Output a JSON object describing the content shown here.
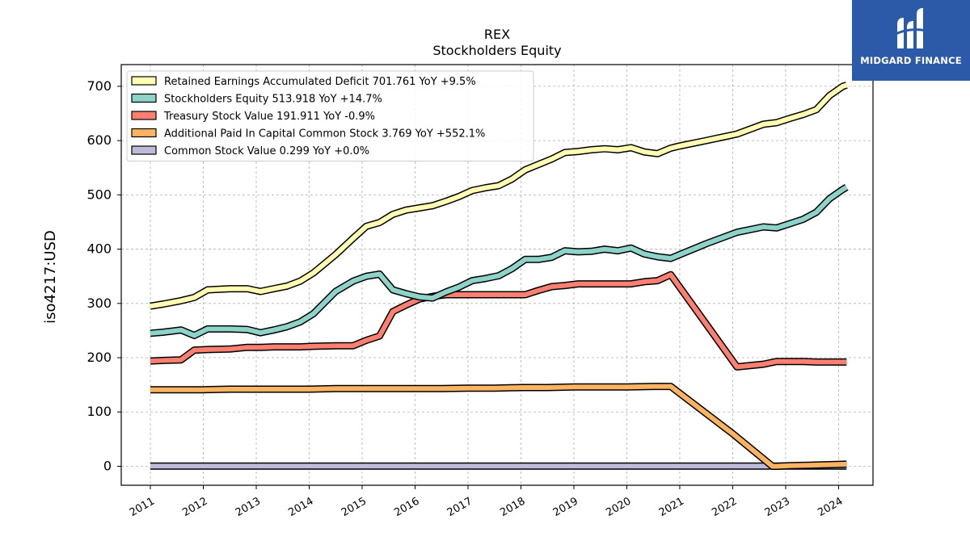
{
  "chart_data": {
    "type": "line",
    "title": "REX",
    "subtitle": "Stockholders  Equity",
    "ylabel": "iso4217:USD",
    "xlabel": "",
    "xlim": [
      2010.45,
      2024.65
    ],
    "ylim": [
      -35,
      740
    ],
    "yticks": [
      0,
      100,
      200,
      300,
      400,
      500,
      600,
      700
    ],
    "xticks": [
      2011,
      2012,
      2013,
      2014,
      2015,
      2016,
      2017,
      2018,
      2019,
      2020,
      2021,
      2022,
      2023,
      2024
    ],
    "grid": true,
    "legend_position": "top-left",
    "series": [
      {
        "name": "Retained Earnings Accumulated Deficit  701.761 YoY +9.5%",
        "color": "#ffffb3",
        "x": [
          2011.0,
          2011.25,
          2011.58,
          2011.83,
          2012.08,
          2012.5,
          2012.83,
          2013.08,
          2013.33,
          2013.58,
          2013.83,
          2014.08,
          2014.5,
          2014.83,
          2015.08,
          2015.33,
          2015.58,
          2015.83,
          2016.08,
          2016.33,
          2016.58,
          2016.83,
          2017.08,
          2017.33,
          2017.58,
          2017.83,
          2018.08,
          2018.33,
          2018.58,
          2018.83,
          2019.08,
          2019.33,
          2019.58,
          2019.83,
          2020.08,
          2020.33,
          2020.58,
          2020.83,
          2021.0,
          2021.5,
          2022.08,
          2022.58,
          2022.83,
          2023.08,
          2023.33,
          2023.58,
          2023.83,
          2024.08,
          2024.15
        ],
        "values": [
          295,
          299,
          305,
          311,
          325,
          327,
          327,
          322,
          327,
          332,
          341,
          356,
          390,
          420,
          442,
          449,
          464,
          472,
          476,
          480,
          488,
          497,
          508,
          513,
          517,
          529,
          546,
          556,
          566,
          578,
          580,
          583,
          585,
          583,
          587,
          579,
          576,
          586,
          590,
          600,
          612,
          630,
          633,
          641,
          648,
          657,
          683,
          700,
          702
        ]
      },
      {
        "name": "Stockholders Equity  513.918 YoY +14.7%",
        "color": "#8dd3c7",
        "x": [
          2011.0,
          2011.25,
          2011.58,
          2011.83,
          2012.08,
          2012.5,
          2012.83,
          2013.08,
          2013.33,
          2013.58,
          2013.83,
          2014.08,
          2014.5,
          2014.83,
          2015.08,
          2015.33,
          2015.58,
          2015.83,
          2016.08,
          2016.33,
          2016.58,
          2016.83,
          2017.08,
          2017.33,
          2017.58,
          2017.83,
          2018.08,
          2018.33,
          2018.58,
          2018.83,
          2019.08,
          2019.33,
          2019.58,
          2019.83,
          2020.08,
          2020.33,
          2020.58,
          2020.83,
          2021.0,
          2021.5,
          2022.08,
          2022.58,
          2022.83,
          2023.08,
          2023.33,
          2023.58,
          2023.83,
          2024.08,
          2024.15
        ],
        "values": [
          245,
          247,
          251,
          241,
          253,
          253,
          252,
          246,
          251,
          257,
          266,
          281,
          322,
          341,
          350,
          354,
          325,
          318,
          312,
          310,
          321,
          330,
          342,
          346,
          351,
          364,
          381,
          381,
          385,
          397,
          395,
          396,
          400,
          397,
          402,
          391,
          386,
          383,
          390,
          410,
          431,
          441,
          439,
          447,
          455,
          468,
          493,
          510,
          514
        ]
      },
      {
        "name": "Treasury Stock Value  191.911 YoY -0.9%",
        "color": "#fb8072",
        "x": [
          2011.0,
          2011.25,
          2011.58,
          2011.83,
          2012.08,
          2012.5,
          2012.83,
          2013.08,
          2013.33,
          2013.58,
          2013.83,
          2014.08,
          2014.5,
          2014.83,
          2015.08,
          2015.33,
          2015.58,
          2015.83,
          2016.08,
          2016.33,
          2016.58,
          2016.83,
          2017.08,
          2017.33,
          2017.58,
          2017.83,
          2018.08,
          2018.33,
          2018.58,
          2018.83,
          2019.08,
          2019.33,
          2019.58,
          2019.83,
          2020.08,
          2020.33,
          2020.58,
          2020.83,
          2022.08,
          2022.58,
          2022.83,
          2023.08,
          2023.33,
          2023.58,
          2023.83,
          2024.08,
          2024.15
        ],
        "values": [
          194,
          195,
          196,
          214,
          215,
          216,
          219,
          219,
          220,
          220,
          220,
          221,
          222,
          222,
          232,
          240,
          285,
          297,
          308,
          313,
          316,
          316,
          316,
          316,
          316,
          316,
          316,
          324,
          331,
          333,
          336,
          336,
          336,
          336,
          336,
          340,
          342,
          353,
          183,
          188,
          193,
          193,
          193,
          192,
          192,
          192,
          192
        ]
      },
      {
        "name": "Additional Paid In Capital Common Stock  3.769 YoY +552.1%",
        "color": "#fdb462",
        "x": [
          2011.0,
          2011.5,
          2012.0,
          2012.5,
          2013.0,
          2013.5,
          2014.0,
          2014.5,
          2015.0,
          2015.5,
          2016.0,
          2016.5,
          2017.0,
          2017.5,
          2018.0,
          2018.5,
          2019.0,
          2019.5,
          2020.0,
          2020.5,
          2020.83,
          2022.0,
          2022.75,
          2022.83,
          2023.08,
          2023.5,
          2023.83,
          2024.15
        ],
        "values": [
          141,
          141,
          141,
          142,
          142,
          142,
          142,
          143,
          143,
          143,
          143,
          143,
          144,
          144,
          145,
          145,
          146,
          146,
          146,
          147,
          147,
          60,
          0,
          0,
          1,
          2,
          3,
          3.769
        ]
      },
      {
        "name": "Common Stock Value  0.299 YoY +0.0%",
        "color": "#bebada",
        "x": [
          2011.0,
          2024.15
        ],
        "values": [
          0.299,
          0.299
        ]
      }
    ]
  },
  "logo": {
    "text": "MIDGARD FINANCE",
    "background": "#2c5aa8"
  }
}
